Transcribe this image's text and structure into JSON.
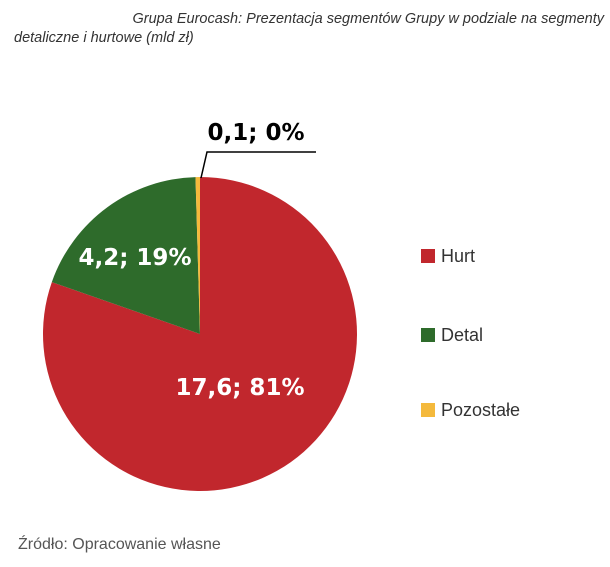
{
  "chart_data": {
    "type": "pie",
    "title_line1": "Grupa Eurocash: Prezentacja segmentów Grupy w podziale na segmenty",
    "title_line2": "detaliczne i hurtowe (mld zł)",
    "slices": [
      {
        "name": "Hurt",
        "value": 17.6,
        "label": "17,6; 81%",
        "color": "#c1272d"
      },
      {
        "name": "Detal",
        "value": 4.2,
        "label": "4,2; 19%",
        "color": "#2e6b2b"
      },
      {
        "name": "Pozostałe",
        "value": 0.1,
        "label": "0,1; 0%",
        "color": "#f4b93c"
      }
    ],
    "legend_position": "right",
    "source": "Źródło: Opracowanie własne"
  }
}
